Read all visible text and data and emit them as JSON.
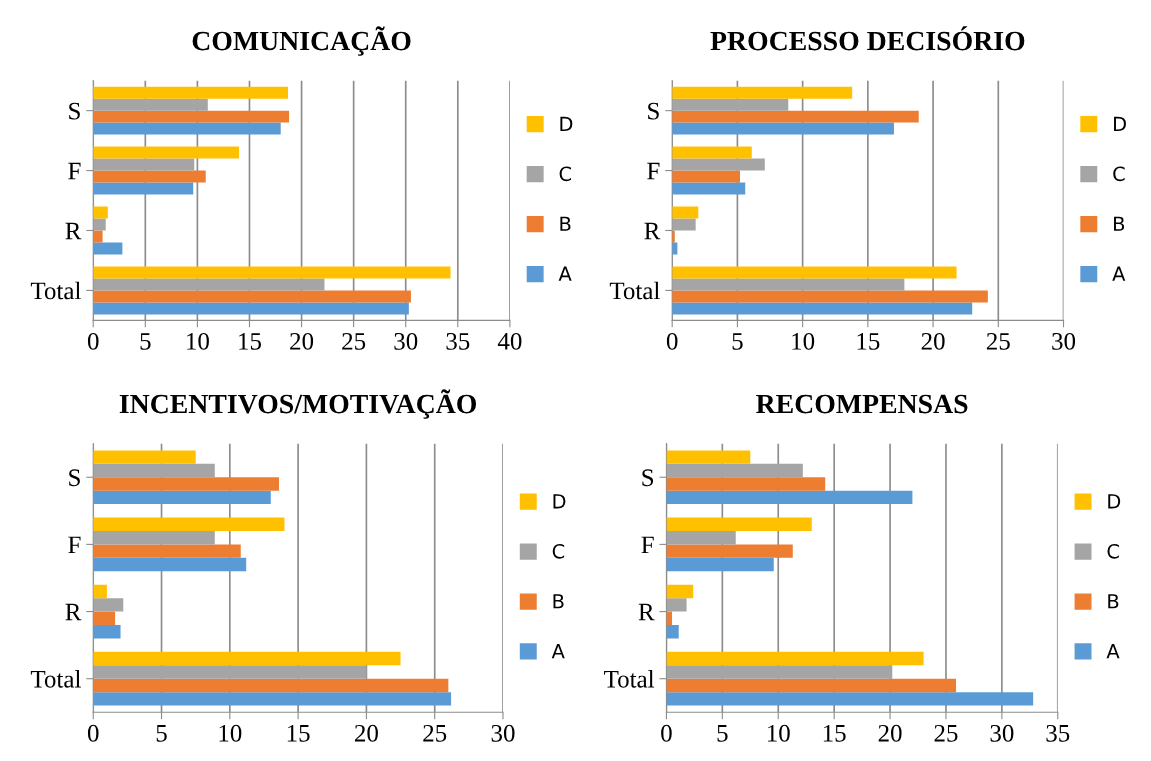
{
  "chart_data": [
    {
      "type": "bar",
      "orientation": "horizontal",
      "title": "COMUNICAÇÃO",
      "categories": [
        "S",
        "F",
        "R",
        "Total"
      ],
      "grid": "x",
      "legend": "right",
      "xlim": [
        0,
        40
      ],
      "xticks": [
        0,
        5,
        10,
        15,
        20,
        25,
        30,
        35,
        40
      ],
      "series": [
        {
          "name": "A",
          "color": "#5b9bd5",
          "values": [
            18.0,
            9.6,
            2.8,
            30.3
          ]
        },
        {
          "name": "B",
          "color": "#ed7d31",
          "values": [
            18.8,
            10.8,
            0.9,
            30.5
          ]
        },
        {
          "name": "C",
          "color": "#a5a5a5",
          "values": [
            11.0,
            9.7,
            1.2,
            22.2
          ]
        },
        {
          "name": "D",
          "color": "#ffc000",
          "values": [
            18.7,
            14.0,
            1.4,
            34.3
          ]
        }
      ]
    },
    {
      "type": "bar",
      "orientation": "horizontal",
      "title": "PROCESSO DECISÓRIO",
      "categories": [
        "S",
        "F",
        "R",
        "Total"
      ],
      "grid": "x",
      "legend": "right",
      "xlim": [
        0,
        30
      ],
      "xticks": [
        0,
        5,
        10,
        15,
        20,
        25,
        30
      ],
      "series": [
        {
          "name": "A",
          "color": "#5b9bd5",
          "values": [
            17.0,
            5.6,
            0.4,
            23.0
          ]
        },
        {
          "name": "B",
          "color": "#ed7d31",
          "values": [
            18.9,
            5.2,
            0.2,
            24.2
          ]
        },
        {
          "name": "C",
          "color": "#a5a5a5",
          "values": [
            8.9,
            7.1,
            1.8,
            17.8
          ]
        },
        {
          "name": "D",
          "color": "#ffc000",
          "values": [
            13.8,
            6.1,
            2.0,
            21.8
          ]
        }
      ]
    },
    {
      "type": "bar",
      "orientation": "horizontal",
      "title": "INCENTIVOS/MOTIVAÇÃO",
      "categories": [
        "S",
        "F",
        "R",
        "Total"
      ],
      "grid": "x",
      "legend": "right",
      "xlim": [
        0,
        30
      ],
      "xticks": [
        0,
        5,
        10,
        15,
        20,
        25,
        30
      ],
      "series": [
        {
          "name": "A",
          "color": "#5b9bd5",
          "values": [
            13.0,
            11.2,
            2.0,
            26.2
          ]
        },
        {
          "name": "B",
          "color": "#ed7d31",
          "values": [
            13.6,
            10.8,
            1.6,
            26.0
          ]
        },
        {
          "name": "C",
          "color": "#a5a5a5",
          "values": [
            8.9,
            8.9,
            2.2,
            20.0
          ]
        },
        {
          "name": "D",
          "color": "#ffc000",
          "values": [
            7.5,
            14.0,
            1.0,
            22.5
          ]
        }
      ]
    },
    {
      "type": "bar",
      "orientation": "horizontal",
      "title": "RECOMPENSAS",
      "categories": [
        "S",
        "F",
        "R",
        "Total"
      ],
      "grid": "x",
      "legend": "right",
      "xlim": [
        0,
        35
      ],
      "xticks": [
        0,
        5,
        10,
        15,
        20,
        25,
        30,
        35
      ],
      "series": [
        {
          "name": "A",
          "color": "#5b9bd5",
          "values": [
            22.0,
            9.6,
            1.1,
            32.8
          ]
        },
        {
          "name": "B",
          "color": "#ed7d31",
          "values": [
            14.2,
            11.3,
            0.5,
            25.9
          ]
        },
        {
          "name": "C",
          "color": "#a5a5a5",
          "values": [
            12.2,
            6.2,
            1.8,
            20.2
          ]
        },
        {
          "name": "D",
          "color": "#ffc000",
          "values": [
            7.5,
            13.0,
            2.4,
            23.0
          ]
        }
      ]
    }
  ]
}
